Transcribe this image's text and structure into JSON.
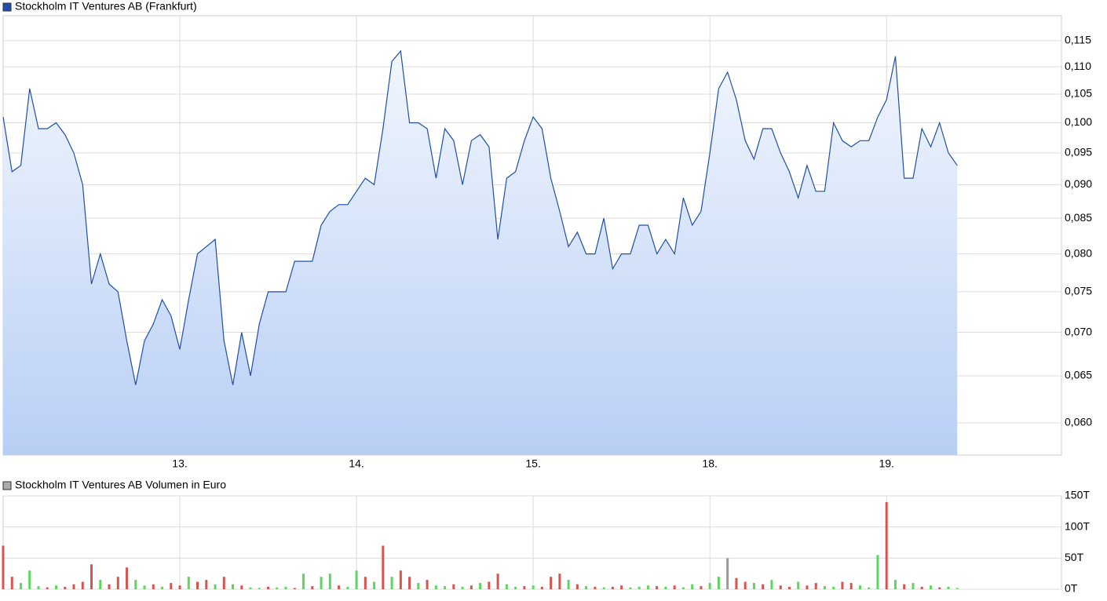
{
  "chart_data": [
    {
      "type": "area",
      "log_scale": true,
      "grid": true,
      "series": [
        {
          "name": "Stockholm IT Ventures AB (Frankfurt)",
          "color": "#1f4fa8",
          "values": [
            0.101,
            0.092,
            0.093,
            0.106,
            0.099,
            0.099,
            0.1,
            0.098,
            0.095,
            0.09,
            0.076,
            0.08,
            0.076,
            0.075,
            0.069,
            0.064,
            0.069,
            0.071,
            0.074,
            0.072,
            0.068,
            0.074,
            0.08,
            0.081,
            0.082,
            0.069,
            0.064,
            0.07,
            0.065,
            0.071,
            0.075,
            0.075,
            0.075,
            0.079,
            0.079,
            0.079,
            0.084,
            0.086,
            0.087,
            0.087,
            0.089,
            0.091,
            0.09,
            0.099,
            0.111,
            0.113,
            0.1,
            0.1,
            0.099,
            0.091,
            0.099,
            0.097,
            0.09,
            0.097,
            0.098,
            0.096,
            0.082,
            0.091,
            0.092,
            0.097,
            0.101,
            0.099,
            0.091,
            0.086,
            0.081,
            0.083,
            0.08,
            0.08,
            0.085,
            0.078,
            0.08,
            0.08,
            0.084,
            0.084,
            0.08,
            0.082,
            0.08,
            0.088,
            0.084,
            0.086,
            0.095,
            0.106,
            0.109,
            0.104,
            0.097,
            0.094,
            0.099,
            0.099,
            0.095,
            0.092,
            0.088,
            0.093,
            0.089,
            0.089,
            0.1,
            0.097,
            0.096,
            0.097,
            0.097,
            0.101,
            0.104,
            0.112,
            0.091,
            0.091,
            0.099,
            0.096,
            0.1,
            0.095,
            0.093
          ]
        }
      ],
      "x": [
        0,
        0.05,
        0.1,
        0.15,
        0.2,
        0.25,
        0.3,
        0.35,
        0.4,
        0.45,
        0.5,
        0.55,
        0.6,
        0.65,
        0.7,
        0.75,
        0.8,
        0.85,
        0.9,
        0.95,
        1,
        1.05,
        1.1,
        1.15,
        1.2,
        1.25,
        1.3,
        1.35,
        1.4,
        1.45,
        1.5,
        1.55,
        1.6,
        1.65,
        1.7,
        1.75,
        1.8,
        1.85,
        1.9,
        1.95,
        2,
        2.05,
        2.1,
        2.15,
        2.2,
        2.25,
        2.3,
        2.35,
        2.4,
        2.45,
        2.5,
        2.55,
        2.6,
        2.65,
        2.7,
        2.75,
        2.8,
        2.85,
        2.9,
        2.95,
        3,
        3.05,
        3.1,
        3.15,
        3.2,
        3.25,
        3.3,
        3.35,
        3.4,
        3.45,
        3.5,
        3.55,
        3.6,
        3.65,
        3.7,
        3.75,
        3.8,
        3.85,
        3.9,
        3.95,
        4,
        4.05,
        4.1,
        4.15,
        4.2,
        4.25,
        4.3,
        4.35,
        4.4,
        4.45,
        4.5,
        4.55,
        4.6,
        4.65,
        4.7,
        4.75,
        4.8,
        4.85,
        4.9,
        4.95,
        5,
        5.05,
        5.1,
        5.15,
        5.2,
        5.25,
        5.3,
        5.35,
        5.4
      ],
      "xlim": [
        0,
        5.99
      ],
      "xticks": [
        {
          "value": 1,
          "label": "13."
        },
        {
          "value": 2,
          "label": "14."
        },
        {
          "value": 3,
          "label": "15."
        },
        {
          "value": 4,
          "label": "18."
        },
        {
          "value": 5,
          "label": "19."
        }
      ],
      "ylim": [
        0.0568,
        0.12
      ],
      "yticks": [
        {
          "value": 0.06,
          "label": "0,060"
        },
        {
          "value": 0.065,
          "label": "0,065"
        },
        {
          "value": 0.07,
          "label": "0,070"
        },
        {
          "value": 0.075,
          "label": "0,075"
        },
        {
          "value": 0.08,
          "label": "0,080"
        },
        {
          "value": 0.085,
          "label": "0,085"
        },
        {
          "value": 0.09,
          "label": "0,090"
        },
        {
          "value": 0.095,
          "label": "0,095"
        },
        {
          "value": 0.1,
          "label": "0,100"
        },
        {
          "value": 0.105,
          "label": "0,105"
        },
        {
          "value": 0.11,
          "label": "0,110"
        },
        {
          "value": 0.115,
          "label": "0,115"
        }
      ]
    },
    {
      "type": "bar",
      "grid": true,
      "series": [
        {
          "name": "Stockholm IT Ventures AB Volumen in Euro",
          "color": "#aaaaaa",
          "values": [
            70,
            20,
            10,
            30,
            5,
            3,
            6,
            4,
            8,
            12,
            40,
            15,
            8,
            20,
            35,
            15,
            6,
            8,
            4,
            10,
            6,
            20,
            12,
            15,
            8,
            20,
            8,
            6,
            3,
            2,
            4,
            3,
            4,
            2,
            25,
            5,
            20,
            25,
            6,
            4,
            30,
            20,
            12,
            70,
            20,
            30,
            20,
            10,
            15,
            6,
            5,
            8,
            4,
            6,
            10,
            12,
            25,
            8,
            4,
            5,
            6,
            4,
            20,
            25,
            15,
            8,
            5,
            4,
            3,
            4,
            6,
            3,
            4,
            6,
            5,
            4,
            6,
            3,
            8,
            5,
            10,
            20,
            50,
            18,
            12,
            10,
            8,
            15,
            6,
            4,
            12,
            6,
            10,
            5,
            4,
            12,
            10,
            6,
            3,
            55,
            140,
            15,
            8,
            10,
            4,
            6,
            3,
            4,
            2
          ],
          "bar_colors": [
            "#d9534f",
            "#d9534f",
            "#5cd65c",
            "#5cd65c",
            "#5cd65c",
            "#d9534f",
            "#5cd65c",
            "#d9534f",
            "#d9534f",
            "#d9534f",
            "#d9534f",
            "#5cd65c",
            "#d9534f",
            "#d9534f",
            "#d9534f",
            "#5cd65c",
            "#5cd65c",
            "#d9534f",
            "#5cd65c",
            "#d9534f",
            "#d9534f",
            "#5cd65c",
            "#d9534f",
            "#d9534f",
            "#5cd65c",
            "#d9534f",
            "#5cd65c",
            "#d9534f",
            "#5cd65c",
            "#5cd65c",
            "#d9534f",
            "#5cd65c",
            "#5cd65c",
            "#d9534f",
            "#5cd65c",
            "#d9534f",
            "#5cd65c",
            "#5cd65c",
            "#d9534f",
            "#5cd65c",
            "#5cd65c",
            "#d9534f",
            "#5cd65c",
            "#d9534f",
            "#5cd65c",
            "#d9534f",
            "#d9534f",
            "#5cd65c",
            "#d9534f",
            "#5cd65c",
            "#5cd65c",
            "#d9534f",
            "#5cd65c",
            "#d9534f",
            "#5cd65c",
            "#d9534f",
            "#d9534f",
            "#5cd65c",
            "#5cd65c",
            "#d9534f",
            "#5cd65c",
            "#d9534f",
            "#d9534f",
            "#d9534f",
            "#5cd65c",
            "#d9534f",
            "#5cd65c",
            "#d9534f",
            "#5cd65c",
            "#d9534f",
            "#d9534f",
            "#5cd65c",
            "#5cd65c",
            "#5cd65c",
            "#d9534f",
            "#5cd65c",
            "#d9534f",
            "#5cd65c",
            "#5cd65c",
            "#d9534f",
            "#5cd65c",
            "#5cd65c",
            "#999999",
            "#d9534f",
            "#d9534f",
            "#5cd65c",
            "#d9534f",
            "#5cd65c",
            "#d9534f",
            "#d9534f",
            "#5cd65c",
            "#d9534f",
            "#d9534f",
            "#5cd65c",
            "#5cd65c",
            "#d9534f",
            "#d9534f",
            "#5cd65c",
            "#5cd65c",
            "#5cd65c",
            "#d9534f",
            "#5cd65c",
            "#d9534f",
            "#5cd65c",
            "#d9534f",
            "#5cd65c",
            "#d9534f",
            "#5cd65c",
            "#5cd65c"
          ]
        }
      ],
      "x": [
        0,
        0.05,
        0.1,
        0.15,
        0.2,
        0.25,
        0.3,
        0.35,
        0.4,
        0.45,
        0.5,
        0.55,
        0.6,
        0.65,
        0.7,
        0.75,
        0.8,
        0.85,
        0.9,
        0.95,
        1,
        1.05,
        1.1,
        1.15,
        1.2,
        1.25,
        1.3,
        1.35,
        1.4,
        1.45,
        1.5,
        1.55,
        1.6,
        1.65,
        1.7,
        1.75,
        1.8,
        1.85,
        1.9,
        1.95,
        2,
        2.05,
        2.1,
        2.15,
        2.2,
        2.25,
        2.3,
        2.35,
        2.4,
        2.45,
        2.5,
        2.55,
        2.6,
        2.65,
        2.7,
        2.75,
        2.8,
        2.85,
        2.9,
        2.95,
        3,
        3.05,
        3.1,
        3.15,
        3.2,
        3.25,
        3.3,
        3.35,
        3.4,
        3.45,
        3.5,
        3.55,
        3.6,
        3.65,
        3.7,
        3.75,
        3.8,
        3.85,
        3.9,
        3.95,
        4,
        4.05,
        4.1,
        4.15,
        4.2,
        4.25,
        4.3,
        4.35,
        4.4,
        4.45,
        4.5,
        4.55,
        4.6,
        4.65,
        4.7,
        4.75,
        4.8,
        4.85,
        4.9,
        4.95,
        5,
        5.05,
        5.1,
        5.15,
        5.2,
        5.25,
        5.3,
        5.35,
        5.4
      ],
      "xlim": [
        0,
        5.99
      ],
      "xticks": [
        {
          "value": 1,
          "label": "13."
        },
        {
          "value": 2,
          "label": "14."
        },
        {
          "value": 3,
          "label": "15."
        },
        {
          "value": 4,
          "label": "18."
        },
        {
          "value": 5,
          "label": "19."
        }
      ],
      "ylim": [
        0,
        150
      ],
      "yticks": [
        {
          "value": 0,
          "label": "0T"
        },
        {
          "value": 50,
          "label": "50T"
        },
        {
          "value": 100,
          "label": "100T"
        },
        {
          "value": 150,
          "label": "150T"
        }
      ]
    }
  ]
}
